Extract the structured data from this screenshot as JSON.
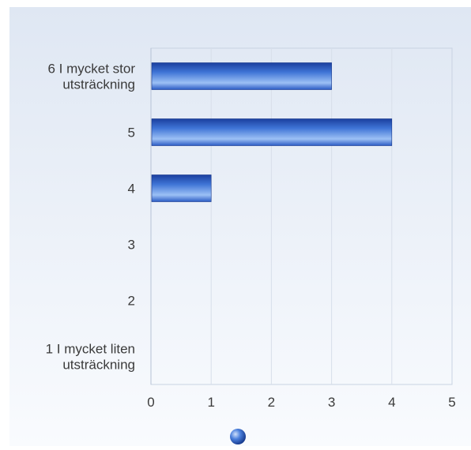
{
  "chart_data": {
    "type": "bar",
    "orientation": "horizontal",
    "categories": [
      [
        "6 I mycket stor",
        "utsträckning"
      ],
      [
        "5"
      ],
      [
        "4"
      ],
      [
        "3"
      ],
      [
        "2"
      ],
      [
        "1 I mycket liten",
        "utsträckning"
      ]
    ],
    "values": [
      3,
      4,
      1,
      0,
      0,
      0
    ],
    "xlim": [
      0,
      5
    ],
    "xticks": [
      "0",
      "1",
      "2",
      "3",
      "4",
      "5"
    ],
    "title": "",
    "xlabel": "",
    "ylabel": "",
    "grid": true,
    "legend": {
      "position": "bottom-center",
      "marker": "sphere",
      "label": ""
    }
  },
  "colors": {
    "background_top": "#dfe7f3",
    "background_bottom": "#f9fbfe",
    "plot_border": "#c9d3e2",
    "gridline": "#d8dfea",
    "bar_dark": "#1b3f9e",
    "bar_mid": "#3f74d6",
    "bar_light": "#9cc0f5",
    "text": "#3a3a3a"
  }
}
